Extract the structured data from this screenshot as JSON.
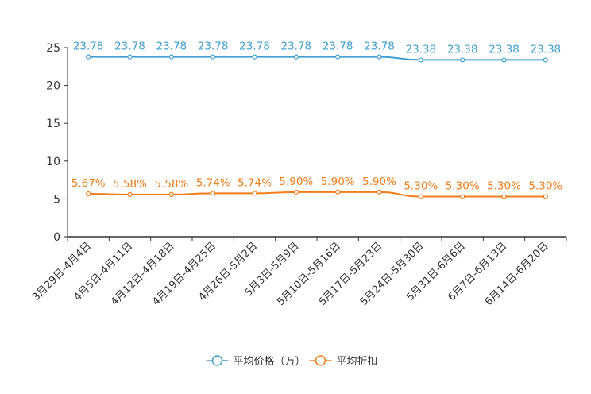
{
  "chart_data": {
    "type": "line",
    "title": "",
    "xlabel": "",
    "ylabel": "",
    "ylim": [
      0,
      25
    ],
    "yticks": [
      0,
      5,
      10,
      15,
      20,
      25
    ],
    "categories": [
      "3月29日-4月4日",
      "4月5日-4月11日",
      "4月12日-4月18日",
      "4月19日-4月25日",
      "4月26日-5月2日",
      "5月3日-5月9日",
      "5月10日-5月16日",
      "5月17日-5月23日",
      "5月24日-5月30日",
      "5月31日-6月6日",
      "6月7日-6月13日",
      "6月14日-6月20日"
    ],
    "series": [
      {
        "name": "平均价格（万）",
        "color": "#3fa0d0",
        "values": [
          23.78,
          23.78,
          23.78,
          23.78,
          23.78,
          23.78,
          23.78,
          23.78,
          23.38,
          23.38,
          23.38,
          23.38
        ],
        "labels": [
          "23.78",
          "23.78",
          "23.78",
          "23.78",
          "23.78",
          "23.78",
          "23.78",
          "23.78",
          "23.38",
          "23.38",
          "23.38",
          "23.38"
        ]
      },
      {
        "name": "平均折扣",
        "color": "#f07d1a",
        "values": [
          5.67,
          5.58,
          5.58,
          5.74,
          5.74,
          5.9,
          5.9,
          5.9,
          5.3,
          5.3,
          5.3,
          5.3
        ],
        "labels": [
          "5.67%",
          "5.58%",
          "5.58%",
          "5.74%",
          "5.74%",
          "5.90%",
          "5.90%",
          "5.90%",
          "5.30%",
          "5.30%",
          "5.30%",
          "5.30%"
        ]
      }
    ],
    "legend_position": "bottom-center",
    "grid": false
  }
}
